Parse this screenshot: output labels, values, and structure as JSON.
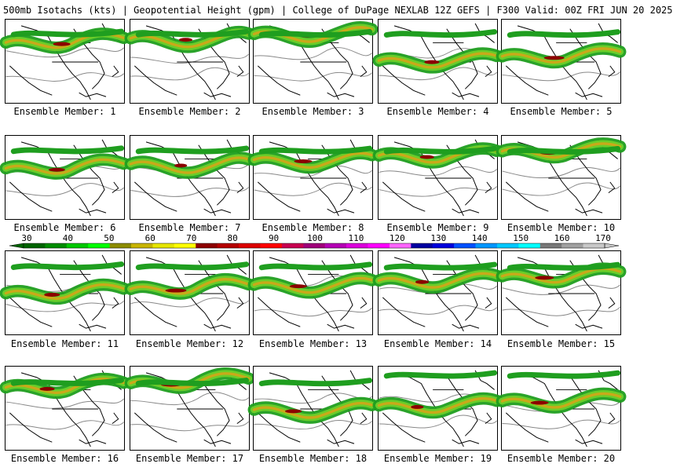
{
  "title": "500mb Isotachs (kts) | Geopotential Height (gpm) | College of DuPage NEXLAB   12Z GEFS | F300 Valid: 00Z FRI JUN 20 2025",
  "member_label_prefix": "Ensemble Member: ",
  "members": [
    1,
    2,
    3,
    4,
    5,
    6,
    7,
    8,
    9,
    10,
    11,
    12,
    13,
    14,
    15,
    16,
    17,
    18,
    19,
    20
  ],
  "colorbar": {
    "ticks": [
      30,
      40,
      50,
      60,
      70,
      80,
      90,
      100,
      110,
      120,
      130,
      140,
      150,
      160,
      170
    ],
    "colors": [
      "#006400",
      "#008c00",
      "#00c800",
      "#00ff00",
      "#8c8c00",
      "#c8b400",
      "#e6e600",
      "#ffff00",
      "#8c0000",
      "#b40000",
      "#dc0000",
      "#ff0000",
      "#c80050",
      "#a0007a",
      "#b400b4",
      "#dc00dc",
      "#ff00ff",
      "#ff64ff",
      "#0000a0",
      "#0000dc",
      "#0050ff",
      "#0096ff",
      "#00c8ff",
      "#00ffff",
      "#787878",
      "#a0a0a0",
      "#c8c8c8"
    ]
  },
  "colors": {
    "jet_low": "#1f9e1f",
    "jet_mid": "#6acd2a",
    "jet_high": "#c9a91a",
    "jet_core": "#8b0000",
    "height_contour": "#888888",
    "coastline": "#000000"
  }
}
